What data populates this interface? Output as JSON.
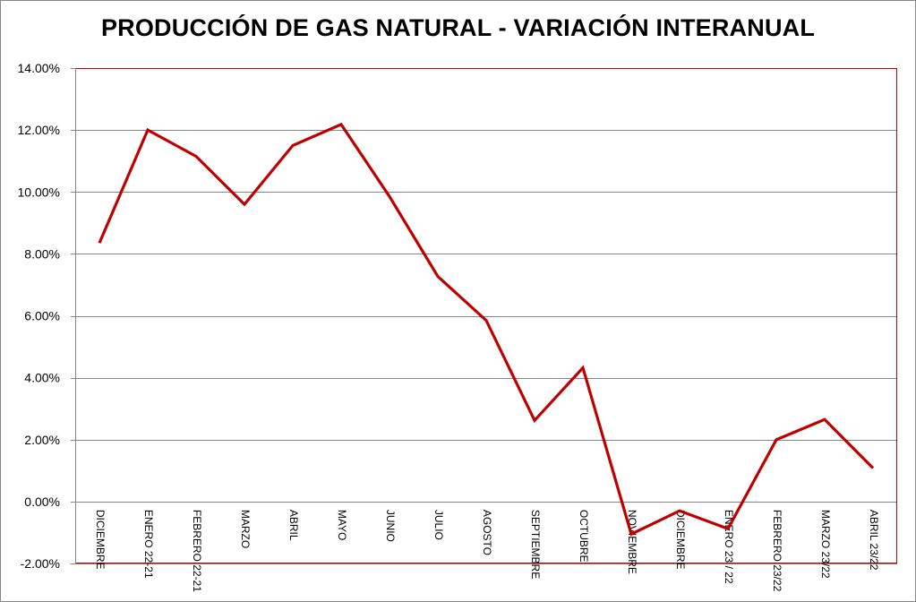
{
  "chart_data": {
    "type": "line",
    "title": "PRODUCCIÓN DE GAS NATURAL - VARIACIÓN INTERANUAL",
    "categories": [
      "DICIEMBRE",
      "ENERO 22-21",
      "FEBRERO 22-21",
      "MARZO",
      "ABRIL",
      "MAYO",
      "JUNIO",
      "JULIO",
      "AGOSTO",
      "SEPTIEMBRE",
      "OCTUBRE",
      "NOVIEMBRE",
      "DICIEMBRE",
      "ENERO 23 / 22",
      "FEBRERO 23/22",
      "MARZO 23/22",
      "ABRIL 23/22"
    ],
    "series": [
      {
        "values": [
          8.35,
          12.0,
          11.15,
          9.6,
          11.5,
          12.18,
          9.85,
          7.27,
          5.85,
          2.62,
          4.32,
          -1.05,
          -0.3,
          -0.88,
          2.0,
          2.65,
          1.08
        ]
      }
    ],
    "yticks": [
      "14.00%",
      "12.00%",
      "10.00%",
      "8.00%",
      "6.00%",
      "4.00%",
      "2.00%",
      "0.00%",
      "-2.00%"
    ],
    "ylim": [
      -2,
      14
    ],
    "ystep": 2,
    "grid": true,
    "legend": "none",
    "line_color": "#C00000",
    "plot_border_color": "#C00000",
    "gridline_color": "#868686"
  }
}
